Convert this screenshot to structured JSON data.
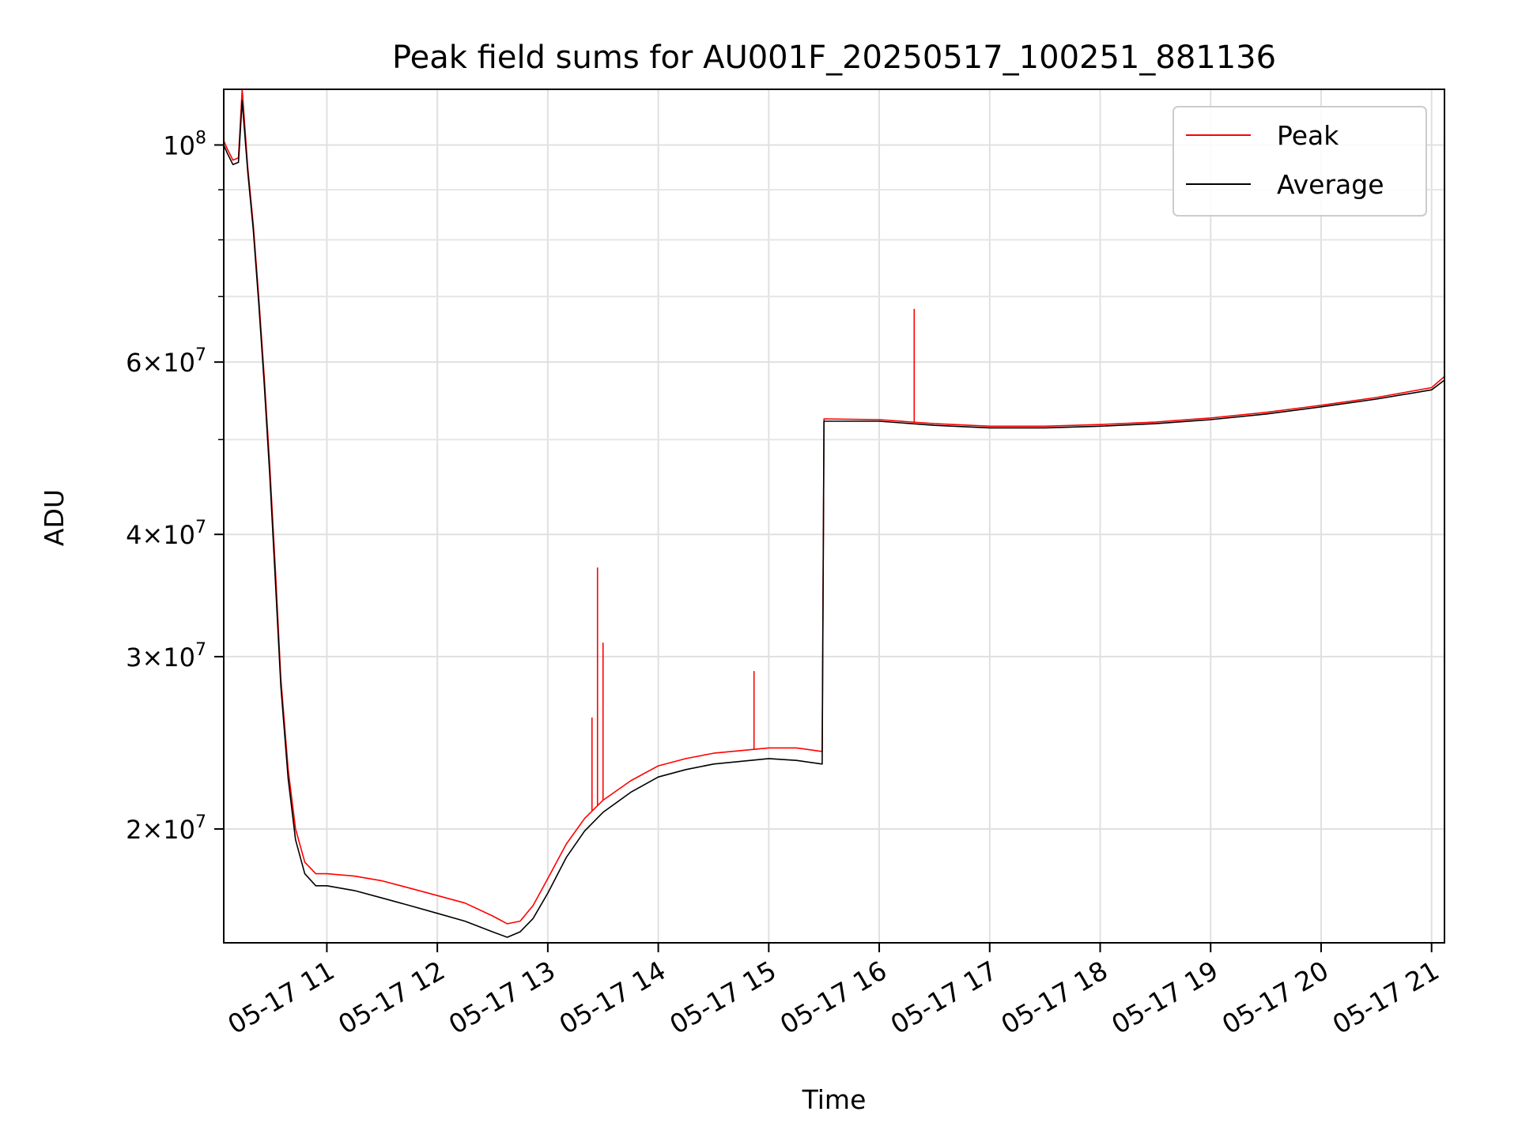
{
  "chart_data": {
    "type": "line",
    "title": "Peak field sums for AU001F_20250517_100251_881136",
    "xlabel": "Time",
    "ylabel": "ADU",
    "yscale": "log",
    "xlim": [
      "2025-05-17 10:04",
      "2025-05-17 21:07"
    ],
    "ylim": [
      15300000,
      114000000
    ],
    "grid": true,
    "legend_position": "top-right",
    "x_ticks": [
      {
        "time": "2025-05-17 11:00",
        "label": "05-17 11"
      },
      {
        "time": "2025-05-17 12:00",
        "label": "05-17 12"
      },
      {
        "time": "2025-05-17 13:00",
        "label": "05-17 13"
      },
      {
        "time": "2025-05-17 14:00",
        "label": "05-17 14"
      },
      {
        "time": "2025-05-17 15:00",
        "label": "05-17 15"
      },
      {
        "time": "2025-05-17 16:00",
        "label": "05-17 16"
      },
      {
        "time": "2025-05-17 17:00",
        "label": "05-17 17"
      },
      {
        "time": "2025-05-17 18:00",
        "label": "05-17 18"
      },
      {
        "time": "2025-05-17 19:00",
        "label": "05-17 19"
      },
      {
        "time": "2025-05-17 20:00",
        "label": "05-17 20"
      },
      {
        "time": "2025-05-17 21:00",
        "label": "05-17 21"
      }
    ],
    "y_ticks": [
      {
        "value": 20000000,
        "mant": "2",
        "exp": "7"
      },
      {
        "value": 30000000,
        "mant": "3",
        "exp": "7"
      },
      {
        "value": 40000000,
        "mant": "4",
        "exp": "7"
      },
      {
        "value": 60000000,
        "mant": "6",
        "exp": "7"
      },
      {
        "value": 100000000,
        "mant": "",
        "exp": "8"
      }
    ],
    "y_minor_ticks": [
      50000000,
      70000000,
      80000000,
      90000000
    ],
    "series": [
      {
        "name": "Peak",
        "color": "#ff0000",
        "points": [
          [
            "2025-05-17 10:04",
            101000000
          ],
          [
            "2025-05-17 10:06",
            99000000
          ],
          [
            "2025-05-17 10:09",
            96500000
          ],
          [
            "2025-05-17 10:12",
            97000000
          ],
          [
            "2025-05-17 10:14",
            114000000
          ],
          [
            "2025-05-17 10:17",
            95000000
          ],
          [
            "2025-05-17 10:20",
            83000000
          ],
          [
            "2025-05-17 10:23",
            70000000
          ],
          [
            "2025-05-17 10:26",
            58000000
          ],
          [
            "2025-05-17 10:29",
            47000000
          ],
          [
            "2025-05-17 10:32",
            37000000
          ],
          [
            "2025-05-17 10:35",
            28500000
          ],
          [
            "2025-05-17 10:39",
            23000000
          ],
          [
            "2025-05-17 10:43",
            20000000
          ],
          [
            "2025-05-17 10:48",
            18500000
          ],
          [
            "2025-05-17 10:54",
            18000000
          ],
          [
            "2025-05-17 11:00",
            18000000
          ],
          [
            "2025-05-17 11:15",
            17900000
          ],
          [
            "2025-05-17 11:30",
            17700000
          ],
          [
            "2025-05-17 11:45",
            17400000
          ],
          [
            "2025-05-17 12:00",
            17100000
          ],
          [
            "2025-05-17 12:15",
            16800000
          ],
          [
            "2025-05-17 12:30",
            16300000
          ],
          [
            "2025-05-17 12:38",
            16000000
          ],
          [
            "2025-05-17 12:45",
            16100000
          ],
          [
            "2025-05-17 12:52",
            16700000
          ],
          [
            "2025-05-17 13:00",
            17800000
          ],
          [
            "2025-05-17 13:10",
            19300000
          ],
          [
            "2025-05-17 13:20",
            20500000
          ],
          [
            "2025-05-17 13:30",
            21400000
          ],
          [
            "2025-05-17 13:45",
            22400000
          ],
          [
            "2025-05-17 14:00",
            23200000
          ],
          [
            "2025-05-17 14:15",
            23600000
          ],
          [
            "2025-05-17 14:30",
            23900000
          ],
          [
            "2025-05-17 15:00",
            24200000
          ],
          [
            "2025-05-17 15:15",
            24200000
          ],
          [
            "2025-05-17 15:29",
            24000000
          ],
          [
            "2025-05-17 15:30",
            52500000
          ],
          [
            "2025-05-17 16:00",
            52400000
          ],
          [
            "2025-05-17 16:30",
            51900000
          ],
          [
            "2025-05-17 17:00",
            51600000
          ],
          [
            "2025-05-17 17:30",
            51600000
          ],
          [
            "2025-05-17 18:00",
            51800000
          ],
          [
            "2025-05-17 18:30",
            52100000
          ],
          [
            "2025-05-17 19:00",
            52600000
          ],
          [
            "2025-05-17 19:30",
            53300000
          ],
          [
            "2025-05-17 20:00",
            54200000
          ],
          [
            "2025-05-17 20:30",
            55200000
          ],
          [
            "2025-05-17 21:00",
            56500000
          ],
          [
            "2025-05-17 21:07",
            58000000
          ]
        ],
        "spikes": [
          [
            "2025-05-17 13:24",
            26000000
          ],
          [
            "2025-05-17 13:27",
            37000000
          ],
          [
            "2025-05-17 13:30",
            31000000
          ],
          [
            "2025-05-17 14:52",
            29000000
          ],
          [
            "2025-05-17 16:19",
            68000000
          ]
        ]
      },
      {
        "name": "Average",
        "color": "#000000",
        "points": [
          [
            "2025-05-17 10:04",
            100000000
          ],
          [
            "2025-05-17 10:06",
            98000000
          ],
          [
            "2025-05-17 10:09",
            95500000
          ],
          [
            "2025-05-17 10:12",
            96000000
          ],
          [
            "2025-05-17 10:14",
            111000000
          ],
          [
            "2025-05-17 10:17",
            94000000
          ],
          [
            "2025-05-17 10:20",
            82000000
          ],
          [
            "2025-05-17 10:23",
            69000000
          ],
          [
            "2025-05-17 10:26",
            57000000
          ],
          [
            "2025-05-17 10:29",
            46000000
          ],
          [
            "2025-05-17 10:32",
            36000000
          ],
          [
            "2025-05-17 10:35",
            28000000
          ],
          [
            "2025-05-17 10:39",
            22500000
          ],
          [
            "2025-05-17 10:43",
            19500000
          ],
          [
            "2025-05-17 10:48",
            18000000
          ],
          [
            "2025-05-17 10:54",
            17500000
          ],
          [
            "2025-05-17 11:00",
            17500000
          ],
          [
            "2025-05-17 11:15",
            17300000
          ],
          [
            "2025-05-17 11:30",
            17000000
          ],
          [
            "2025-05-17 11:45",
            16700000
          ],
          [
            "2025-05-17 12:00",
            16400000
          ],
          [
            "2025-05-17 12:15",
            16100000
          ],
          [
            "2025-05-17 12:30",
            15700000
          ],
          [
            "2025-05-17 12:38",
            15500000
          ],
          [
            "2025-05-17 12:45",
            15700000
          ],
          [
            "2025-05-17 12:52",
            16200000
          ],
          [
            "2025-05-17 13:00",
            17200000
          ],
          [
            "2025-05-17 13:10",
            18700000
          ],
          [
            "2025-05-17 13:20",
            19900000
          ],
          [
            "2025-05-17 13:30",
            20800000
          ],
          [
            "2025-05-17 13:45",
            21800000
          ],
          [
            "2025-05-17 14:00",
            22600000
          ],
          [
            "2025-05-17 14:15",
            23000000
          ],
          [
            "2025-05-17 14:30",
            23300000
          ],
          [
            "2025-05-17 15:00",
            23600000
          ],
          [
            "2025-05-17 15:15",
            23500000
          ],
          [
            "2025-05-17 15:29",
            23300000
          ],
          [
            "2025-05-17 15:30",
            52200000
          ],
          [
            "2025-05-17 16:00",
            52200000
          ],
          [
            "2025-05-17 16:30",
            51700000
          ],
          [
            "2025-05-17 17:00",
            51400000
          ],
          [
            "2025-05-17 17:30",
            51400000
          ],
          [
            "2025-05-17 18:00",
            51600000
          ],
          [
            "2025-05-17 18:30",
            51900000
          ],
          [
            "2025-05-17 19:00",
            52400000
          ],
          [
            "2025-05-17 19:30",
            53100000
          ],
          [
            "2025-05-17 20:00",
            54000000
          ],
          [
            "2025-05-17 20:30",
            55000000
          ],
          [
            "2025-05-17 21:00",
            56200000
          ],
          [
            "2025-05-17 21:07",
            57500000
          ]
        ]
      }
    ]
  }
}
